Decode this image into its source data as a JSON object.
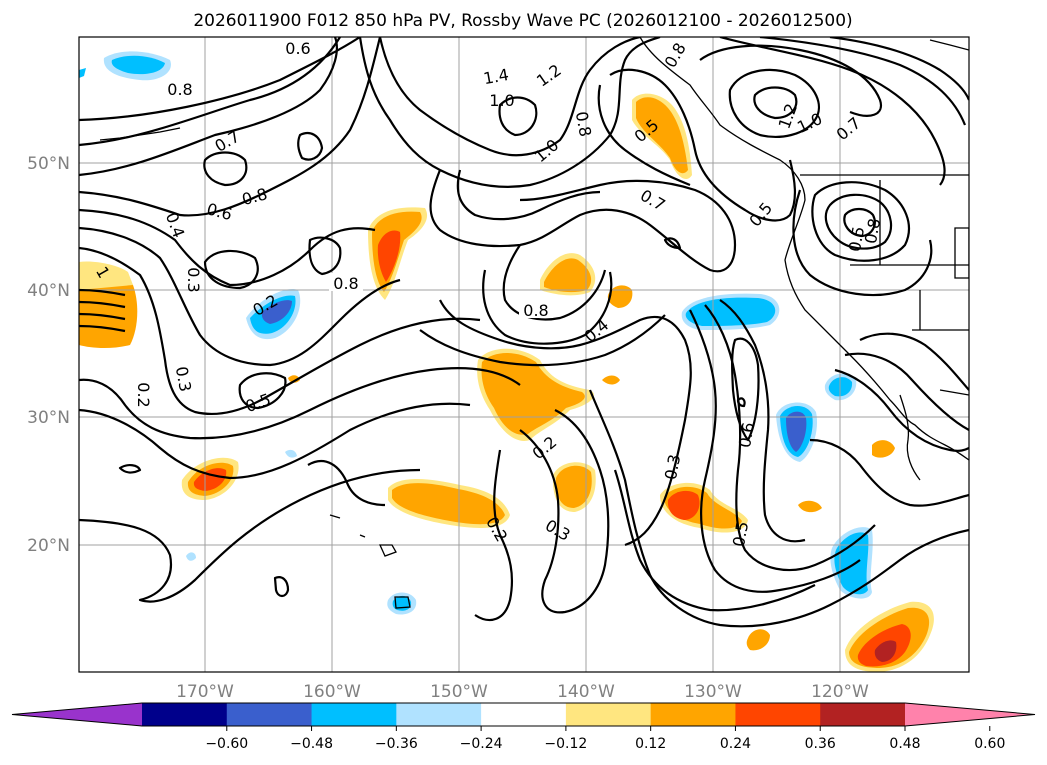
{
  "title": "2026011900 F012 850 hPa PV, Rossby Wave PC (2026012100 - 2026012500)",
  "lat_labels": [
    "50°N",
    "40°N",
    "30°N",
    "20°N"
  ],
  "lon_labels": [
    "170°W",
    "160°W",
    "150°W",
    "140°W",
    "130°W",
    "120°W"
  ],
  "colorbar": {
    "ticks": [
      "−0.60",
      "−0.48",
      "−0.36",
      "−0.24",
      "−0.12",
      "0.12",
      "0.24",
      "0.36",
      "0.48",
      "0.60"
    ],
    "colors": [
      "#9933cc",
      "#00008b",
      "#3a5fcd",
      "#00bfff",
      "#b0e2ff",
      "#ffffff",
      "#ffe680",
      "#ffa500",
      "#ff4500",
      "#b22222",
      "#ff82ab"
    ]
  },
  "contour_labels": [
    "0.6",
    "0.8",
    "0.7",
    "0.8",
    "0.6",
    "0.4",
    "0.3",
    "0.2",
    "0.3",
    "0.5",
    "1",
    "0.8",
    "0.2",
    "1.4",
    "1.2",
    "1.0",
    "1.0",
    "0.8",
    "0.8",
    "0.5",
    "0.7",
    "0.8",
    "0.4",
    "0.2",
    "0.3",
    "0.2",
    "0.3",
    "0.6",
    "0.5",
    "0.5",
    "1.2",
    "1.0",
    "0.7",
    "0.5",
    "0.8"
  ]
}
